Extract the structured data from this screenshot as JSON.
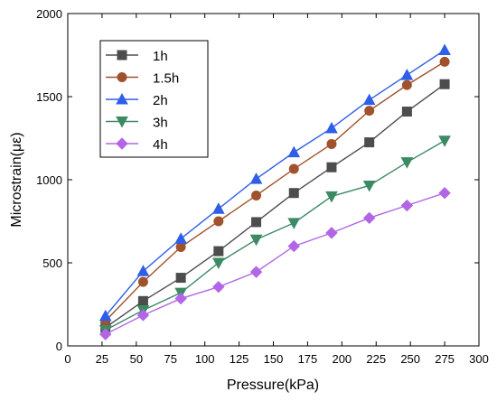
{
  "chart_data": {
    "type": "line",
    "title": "",
    "xlabel": "Pressure(kPa)",
    "ylabel": "Microstrain(με)",
    "xlim": [
      0,
      300
    ],
    "ylim": [
      0,
      2000
    ],
    "xticks": [
      0,
      25,
      50,
      75,
      100,
      125,
      150,
      175,
      200,
      225,
      250,
      275,
      300
    ],
    "yticks": [
      0,
      500,
      1000,
      1500,
      2000
    ],
    "grid": false,
    "legend_position": "top-left",
    "x": [
      27.5,
      55,
      82.5,
      110,
      137.5,
      165,
      192.5,
      220,
      247.5,
      275
    ],
    "series": [
      {
        "name": "1h",
        "color": "#4d4d4d",
        "marker": "square",
        "values": [
          110,
          270,
          410,
          570,
          745,
          920,
          1075,
          1225,
          1410,
          1575
        ]
      },
      {
        "name": "1.5h",
        "color": "#a0522d",
        "marker": "circle",
        "values": [
          150,
          385,
          595,
          750,
          905,
          1065,
          1215,
          1415,
          1570,
          1710
        ]
      },
      {
        "name": "2h",
        "color": "#2f5fe8",
        "marker": "triangle-up",
        "values": [
          180,
          450,
          645,
          825,
          1005,
          1165,
          1310,
          1480,
          1630,
          1780
        ]
      },
      {
        "name": "3h",
        "color": "#3c8a64",
        "marker": "triangle-down",
        "values": [
          95,
          215,
          320,
          500,
          640,
          740,
          900,
          965,
          1105,
          1235
        ]
      },
      {
        "name": "4h",
        "color": "#b266e6",
        "marker": "diamond",
        "values": [
          70,
          185,
          285,
          355,
          445,
          600,
          680,
          770,
          845,
          920
        ]
      }
    ]
  }
}
